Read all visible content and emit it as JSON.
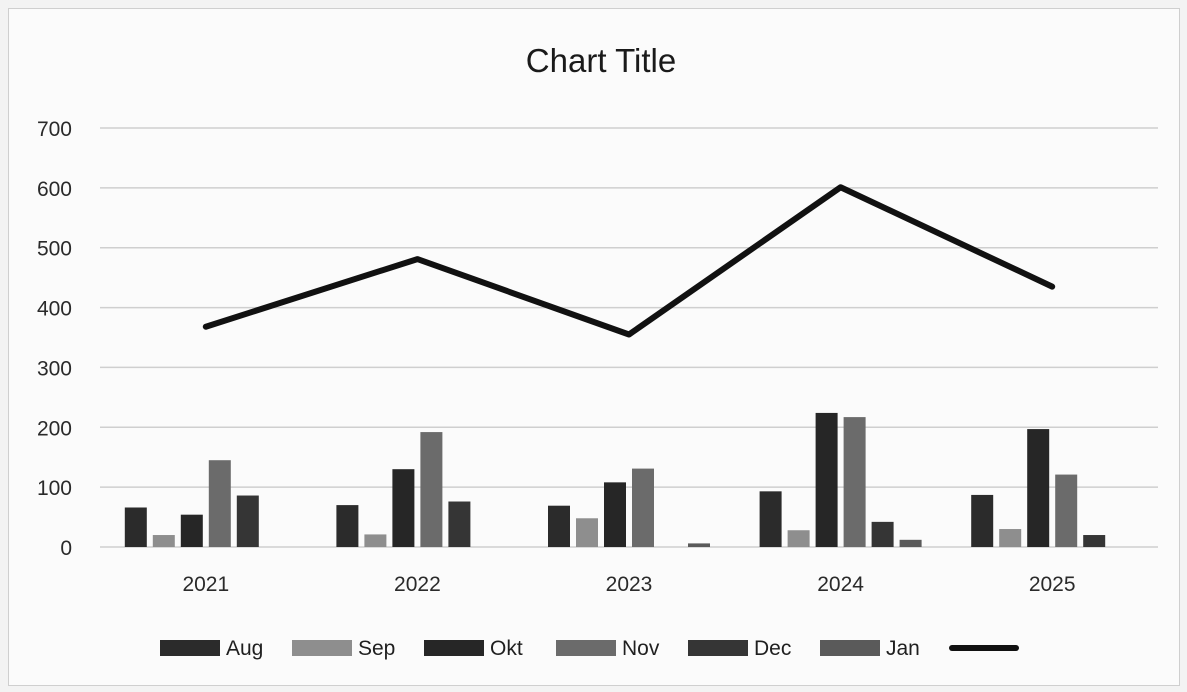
{
  "chart_data": {
    "type": "bar",
    "title": "Chart Title",
    "categories": [
      "2021",
      "2022",
      "2023",
      "2024",
      "2025"
    ],
    "ylim": [
      0,
      700
    ],
    "yticks": [
      0,
      100,
      200,
      300,
      400,
      500,
      600,
      700
    ],
    "grid": true,
    "legend_position": "bottom",
    "series": [
      {
        "name": "Aug",
        "kind": "bar",
        "color": "#2b2b2b",
        "values": [
          66,
          70,
          69,
          93,
          87
        ]
      },
      {
        "name": "Sep",
        "kind": "bar",
        "color": "#8e8e8e",
        "values": [
          20,
          21,
          48,
          28,
          30
        ]
      },
      {
        "name": "Okt",
        "kind": "bar",
        "color": "#262626",
        "values": [
          54,
          130,
          108,
          224,
          197
        ]
      },
      {
        "name": "Nov",
        "kind": "bar",
        "color": "#6b6b6b",
        "values": [
          145,
          192,
          131,
          217,
          121
        ]
      },
      {
        "name": "Dec",
        "kind": "bar",
        "color": "#353535",
        "values": [
          86,
          76,
          0,
          42,
          20
        ]
      },
      {
        "name": "Jan",
        "kind": "bar",
        "color": "#5a5a5a",
        "values": [
          0,
          0,
          6,
          12,
          0
        ]
      },
      {
        "name": "",
        "kind": "line",
        "color": "#111111",
        "values": [
          368,
          481,
          355,
          601,
          435
        ]
      }
    ]
  }
}
